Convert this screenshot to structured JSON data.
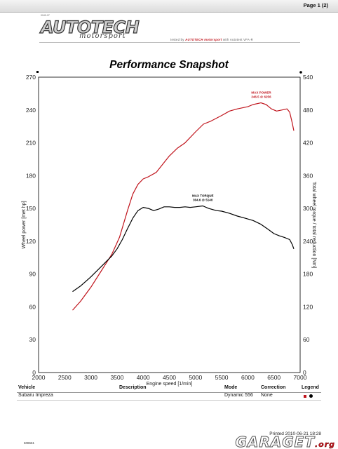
{
  "header": {
    "page_label": "Page 1 (2)",
    "code_small": "0040-97",
    "logo_main": "AUTOTECH",
    "logo_sub": "motorsport",
    "tagline_prefix": "tested by",
    "tagline_brand": "AUTOTECH motorsport",
    "tagline_suffix": "with Autotest VFA-R"
  },
  "page_title": "Performance Snapshot",
  "colors": {
    "power": "#c0141c",
    "torque": "#000000",
    "grid": "#c8c8c8"
  },
  "chart_data": {
    "type": "line",
    "title": "Performance Snapshot",
    "xlabel": "Engine speed [1/min]",
    "ylabel_left": "Wheel power [met hp]",
    "ylabel_right": "Total wheel torque / total reduction [Nm]",
    "xlim": [
      2000,
      7000
    ],
    "ylim_left": [
      0,
      270
    ],
    "ylim_right": [
      0,
      540
    ],
    "x_ticks": [
      2000,
      2500,
      3000,
      3500,
      4000,
      4500,
      5000,
      5500,
      6000,
      6500,
      7000
    ],
    "y_ticks_left": [
      0,
      30,
      60,
      90,
      120,
      150,
      180,
      210,
      240,
      270
    ],
    "y_ticks_right": [
      0,
      60,
      120,
      180,
      240,
      300,
      360,
      420,
      480,
      540
    ],
    "grid": true,
    "series": [
      {
        "name": "Wheel power",
        "axis": "left",
        "color": "#c0141c",
        "x": [
          2650,
          2800,
          3000,
          3200,
          3400,
          3550,
          3700,
          3800,
          3900,
          4000,
          4100,
          4250,
          4400,
          4500,
          4650,
          4800,
          5000,
          5150,
          5300,
          5500,
          5650,
          5800,
          6000,
          6100,
          6250,
          6350,
          6450,
          6550,
          6650,
          6750,
          6800,
          6850,
          6880
        ],
        "y": [
          57,
          65,
          78,
          93,
          108,
          124,
          148,
          163,
          172,
          177,
          179,
          183,
          192,
          198,
          205,
          210,
          220,
          227,
          230,
          235,
          239,
          241,
          243,
          245,
          246.5,
          245,
          241,
          239,
          240,
          241,
          238,
          228,
          221
        ]
      },
      {
        "name": "Wheel torque",
        "axis": "right",
        "color": "#000000",
        "x": [
          2650,
          2800,
          3000,
          3200,
          3400,
          3500,
          3600,
          3700,
          3800,
          3900,
          4000,
          4100,
          4200,
          4300,
          4400,
          4500,
          4600,
          4700,
          4800,
          4900,
          5000,
          5140,
          5250,
          5400,
          5500,
          5650,
          5800,
          5950,
          6100,
          6250,
          6400,
          6500,
          6600,
          6700,
          6800,
          6850,
          6880
        ],
        "y": [
          148,
          158,
          175,
          194,
          213,
          226,
          243,
          263,
          282,
          296,
          302,
          300,
          296,
          299,
          303,
          303,
          302,
          302,
          303,
          302,
          303,
          304.6,
          300,
          296,
          295,
          291,
          286,
          282,
          278,
          271,
          261,
          254,
          250,
          247,
          243,
          234,
          226
        ]
      }
    ],
    "annotations": [
      {
        "label": "MAX POWER",
        "value": "246.5 @ 6256",
        "x": 6256,
        "y": 246.5,
        "axis": "left",
        "color": "#c0141c"
      },
      {
        "label": "MAX TORQUE",
        "value": "304.6 @ 5140",
        "x": 5140,
        "y": 304.6,
        "axis": "right",
        "color": "#000000"
      }
    ]
  },
  "legend_table": {
    "headers": {
      "vehicle": "Vehicle",
      "description": "Description",
      "mode": "Mode",
      "correction": "Correction",
      "legend": "Legend"
    },
    "row": {
      "vehicle": "Subaru Impreza",
      "description": "",
      "mode": "Dynamic 556",
      "correction": "None"
    }
  },
  "footer": {
    "printed": "Printed 2010-06-21 18:28",
    "code": "608661",
    "watermark_main": "GARAGET",
    "watermark_org": ".org"
  }
}
